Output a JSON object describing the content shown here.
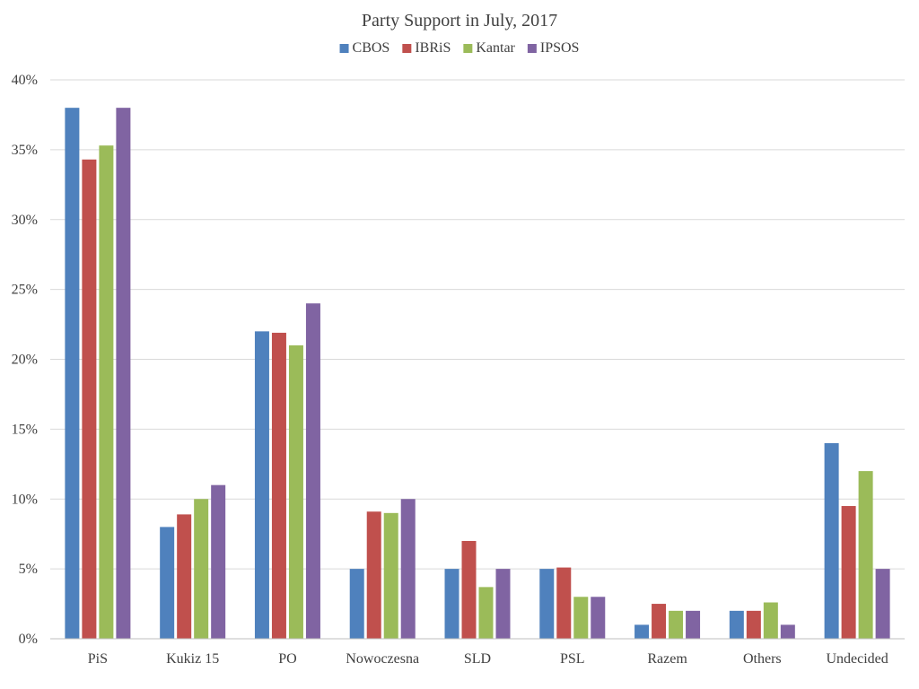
{
  "chart_data": {
    "type": "bar",
    "title": "Party Support in July, 2017",
    "xlabel": "",
    "ylabel": "",
    "ylim": [
      0,
      40
    ],
    "yticks": [
      "0%",
      "5%",
      "10%",
      "15%",
      "20%",
      "25%",
      "30%",
      "35%",
      "40%"
    ],
    "ytick_values": [
      0,
      5,
      10,
      15,
      20,
      25,
      30,
      35,
      40
    ],
    "grid": true,
    "legend_position": "top",
    "categories": [
      "PiS",
      "Kukiz 15",
      "PO",
      "Nowoczesna",
      "SLD",
      "PSL",
      "Razem",
      "Others",
      "Undecided"
    ],
    "series": [
      {
        "name": "CBOS",
        "color": "#4f81bd",
        "values": [
          38,
          8,
          22,
          5,
          5,
          5,
          1,
          2,
          14
        ]
      },
      {
        "name": "IBRiS",
        "color": "#c0504d",
        "values": [
          34.3,
          8.9,
          21.9,
          9.1,
          7,
          5.1,
          2.5,
          2,
          9.5
        ]
      },
      {
        "name": "Kantar",
        "color": "#9bbb59",
        "values": [
          35.3,
          10,
          21,
          9,
          3.7,
          3,
          2,
          2.6,
          12
        ]
      },
      {
        "name": "IPSOS",
        "color": "#8064a2",
        "values": [
          38,
          11,
          24,
          10,
          5,
          3,
          2,
          1,
          5
        ]
      }
    ]
  }
}
